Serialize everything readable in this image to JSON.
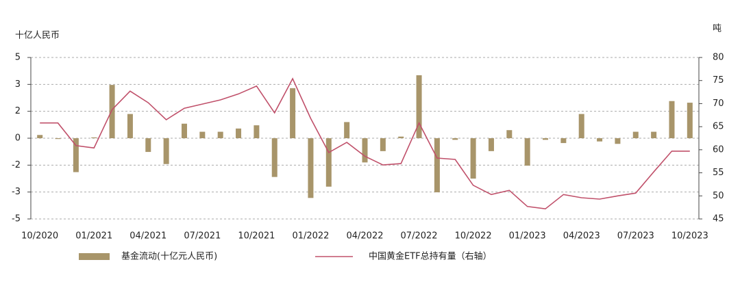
{
  "chart_data": {
    "type": "bar-line",
    "y_label": "十亿人民币",
    "y2_label": "吨",
    "categories": [
      "10/2020",
      null,
      null,
      "01/2021",
      null,
      null,
      "04/2021",
      null,
      null,
      "07/2021",
      null,
      null,
      "10/2021",
      null,
      null,
      "01/2022",
      null,
      null,
      "04/2022",
      null,
      null,
      "07/2022",
      null,
      null,
      "10/2022",
      null,
      null,
      "01/2023",
      null,
      null,
      "04/2023",
      null,
      null,
      "07/2023",
      null,
      null,
      "10/2023"
    ],
    "series": [
      {
        "name": "基金流动(十亿元人民币)",
        "type": "bar",
        "color": "#a8956a",
        "values": [
          0.2,
          -0.05,
          -2.1,
          0.05,
          3.3,
          1.5,
          -0.85,
          -1.6,
          0.9,
          0.4,
          0.4,
          0.6,
          0.8,
          -2.4,
          3.1,
          -3.7,
          -3.0,
          1.0,
          -1.5,
          -0.8,
          0.1,
          3.9,
          -3.35,
          -0.1,
          -2.5,
          -0.8,
          0.5,
          -1.7,
          -0.1,
          -0.3,
          1.5,
          -0.2,
          -0.35,
          0.4,
          0.4,
          2.3,
          2.2
        ]
      },
      {
        "name": "中国黄金ETF总持有量（右轴）",
        "type": "line",
        "axis": "y2",
        "color": "#c0506a",
        "values": [
          65.8,
          65.8,
          60.9,
          60.4,
          68.7,
          72.7,
          70.2,
          66.5,
          69.0,
          69.9,
          70.8,
          72.1,
          73.8,
          68.0,
          75.4,
          66.8,
          59.4,
          61.6,
          58.6,
          56.7,
          57.0,
          65.8,
          58.2,
          57.9,
          52.3,
          50.3,
          51.2,
          47.7,
          47.2,
          50.3,
          49.6,
          49.3,
          50.0,
          50.6,
          55.2,
          59.7,
          59.7
        ]
      }
    ],
    "ylim": [
      -5,
      5
    ],
    "yticks": [
      5,
      {
        "value": 3.333,
        "label": "3"
      },
      {
        "value": 1.667,
        "label": "2"
      },
      0,
      {
        "value": -1.667,
        "label": "-2"
      },
      {
        "value": -3.333,
        "label": "-3"
      },
      -5
    ],
    "y2lim": [
      45,
      80
    ],
    "y2ticks": [
      45,
      50,
      55,
      60,
      65,
      70,
      75,
      80
    ],
    "grid": true,
    "legend": "bottom"
  }
}
